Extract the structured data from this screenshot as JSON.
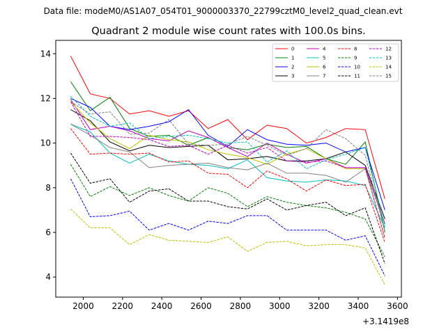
{
  "header": {
    "data_file": "Data file: modeM0/AS1A07_054T01_9000003370_22799cztM0_level2_quad_clean.evt"
  },
  "chart_data": {
    "type": "line",
    "title": "Quadrant 2 module wise count rates with 100.0s bins.",
    "xlabel": "",
    "ylabel": "",
    "x_offset_label": "+3.1419e8",
    "xlim": [
      1860,
      3620
    ],
    "ylim": [
      3.1,
      14.6
    ],
    "xticks": [
      2000,
      2200,
      2400,
      2600,
      2800,
      3000,
      3200,
      3400,
      3600
    ],
    "yticks": [
      4,
      6,
      8,
      10,
      12,
      14
    ],
    "grid": false,
    "legend_placement": "top-right",
    "x": [
      1936,
      2036,
      2136,
      2236,
      2336,
      2436,
      2536,
      2636,
      2736,
      2836,
      2936,
      3036,
      3136,
      3236,
      3336,
      3436,
      3536
    ],
    "series": [
      {
        "name": "0",
        "color": "#ff0000",
        "dashed": false,
        "values": [
          13.9,
          12.2,
          12.0,
          11.3,
          11.45,
          11.2,
          11.45,
          10.65,
          11.05,
          10.15,
          10.8,
          10.65,
          10.0,
          10.25,
          10.65,
          10.6,
          7.5
        ]
      },
      {
        "name": "1",
        "color": "#008000",
        "dashed": false,
        "values": [
          12.75,
          11.45,
          12.05,
          10.65,
          10.3,
          10.35,
          9.9,
          10.25,
          9.8,
          9.7,
          9.95,
          9.8,
          9.85,
          9.3,
          9.05,
          10.05,
          6.0
        ]
      },
      {
        "name": "2",
        "color": "#0000ff",
        "dashed": false,
        "values": [
          12.0,
          11.6,
          10.75,
          10.6,
          10.75,
          10.95,
          11.5,
          10.35,
          9.85,
          10.6,
          10.15,
          9.95,
          9.9,
          10.0,
          9.6,
          9.8,
          7.0
        ]
      },
      {
        "name": "3",
        "color": "#000000",
        "dashed": false,
        "values": [
          11.5,
          11.0,
          10.05,
          9.65,
          9.9,
          9.8,
          9.85,
          9.9,
          9.25,
          9.3,
          9.4,
          9.2,
          9.2,
          9.3,
          9.6,
          9.0,
          6.6
        ]
      },
      {
        "name": "4",
        "color": "#bf00bf",
        "dashed": false,
        "values": [
          11.95,
          10.6,
          10.75,
          10.55,
          10.2,
          10.1,
          10.55,
          10.25,
          9.8,
          9.4,
          10.0,
          9.5,
          9.1,
          9.3,
          8.9,
          8.9,
          6.4
        ]
      },
      {
        "name": "5",
        "color": "#00bfbf",
        "dashed": false,
        "values": [
          10.85,
          10.5,
          9.55,
          9.1,
          9.5,
          9.2,
          9.05,
          9.0,
          8.85,
          9.25,
          8.45,
          8.3,
          8.25,
          8.35,
          8.3,
          8.1,
          6.2
        ]
      },
      {
        "name": "6",
        "color": "#bfbf00",
        "dashed": false,
        "values": [
          11.85,
          10.9,
          10.2,
          9.75,
          10.35,
          10.15,
          10.05,
          9.7,
          9.5,
          9.35,
          9.05,
          9.5,
          9.75,
          9.3,
          8.85,
          8.85,
          5.75
        ]
      },
      {
        "name": "7",
        "color": "#808080",
        "dashed": false,
        "values": [
          10.85,
          10.35,
          9.8,
          9.6,
          8.9,
          9.0,
          9.05,
          9.1,
          8.9,
          8.8,
          9.1,
          8.65,
          8.65,
          8.55,
          8.25,
          8.85,
          6.35
        ]
      },
      {
        "name": "8",
        "color": "#ff0000",
        "dashed": true,
        "values": [
          10.65,
          9.5,
          9.55,
          9.5,
          9.55,
          9.15,
          9.2,
          8.65,
          8.6,
          8.0,
          8.75,
          8.4,
          7.85,
          8.35,
          8.1,
          8.15,
          5.55
        ]
      },
      {
        "name": "9",
        "color": "#008000",
        "dashed": true,
        "values": [
          9.05,
          7.6,
          8.05,
          7.65,
          8.0,
          7.65,
          7.4,
          8.0,
          7.75,
          7.15,
          7.6,
          7.35,
          7.2,
          7.1,
          6.9,
          6.6,
          4.9
        ]
      },
      {
        "name": "10",
        "color": "#0000ff",
        "dashed": true,
        "values": [
          8.4,
          6.7,
          6.75,
          6.95,
          6.1,
          6.4,
          6.1,
          6.5,
          6.4,
          6.75,
          6.75,
          6.1,
          6.1,
          6.1,
          5.65,
          5.85,
          4.05
        ]
      },
      {
        "name": "11",
        "color": "#000000",
        "dashed": true,
        "values": [
          9.55,
          8.2,
          8.4,
          7.35,
          7.85,
          7.95,
          7.4,
          7.4,
          7.15,
          7.05,
          7.5,
          7.0,
          7.2,
          7.35,
          6.75,
          7.1,
          4.6
        ]
      },
      {
        "name": "12",
        "color": "#bf00bf",
        "dashed": true,
        "values": [
          11.85,
          10.3,
          10.3,
          10.25,
          10.15,
          9.85,
          9.9,
          9.5,
          9.9,
          9.55,
          9.8,
          9.2,
          9.15,
          9.2,
          8.9,
          8.9,
          5.75
        ]
      },
      {
        "name": "13",
        "color": "#00bfbf",
        "dashed": true,
        "values": [
          12.1,
          11.2,
          10.75,
          10.9,
          10.2,
          10.3,
          10.35,
          10.2,
          10.0,
          10.05,
          9.15,
          9.65,
          8.85,
          9.25,
          9.5,
          9.8,
          6.25
        ]
      },
      {
        "name": "14",
        "color": "#bfbf00",
        "dashed": true,
        "values": [
          7.05,
          6.2,
          6.2,
          5.45,
          5.9,
          5.65,
          5.6,
          5.55,
          5.8,
          5.15,
          5.55,
          5.6,
          5.4,
          5.45,
          5.45,
          5.3,
          3.65
        ]
      },
      {
        "name": "15",
        "color": "#808080",
        "dashed": true,
        "values": [
          11.85,
          11.3,
          11.4,
          10.4,
          10.45,
          11.05,
          9.95,
          9.9,
          9.95,
          10.3,
          9.9,
          9.45,
          9.75,
          10.6,
          10.2,
          9.45,
          6.05
        ]
      }
    ]
  }
}
